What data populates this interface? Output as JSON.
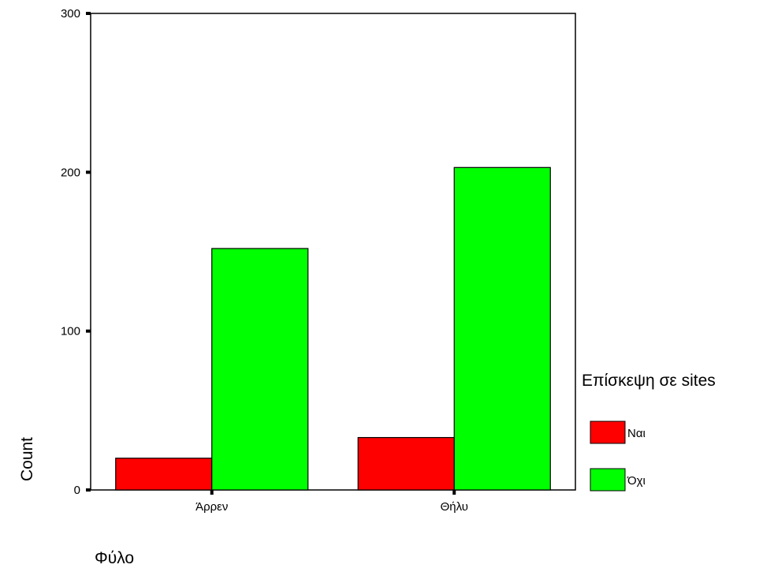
{
  "chart_data": {
    "type": "bar",
    "categories": [
      "Άρρεν",
      "Θήλυ"
    ],
    "series": [
      {
        "name": "Ναι",
        "color": "#ff0000",
        "values": [
          20,
          33
        ]
      },
      {
        "name": "Όχι",
        "color": "#00ff00",
        "values": [
          152,
          203
        ]
      }
    ],
    "xlabel": "Φύλο",
    "ylabel": "Count",
    "ylim": [
      0,
      300
    ],
    "yticks": [
      "0",
      "100",
      "200",
      "300"
    ],
    "ytick_values": [
      0,
      100,
      200,
      300
    ],
    "legend": {
      "title": "Επίσκεψη σε sites",
      "placement": "right"
    },
    "grid": false
  }
}
